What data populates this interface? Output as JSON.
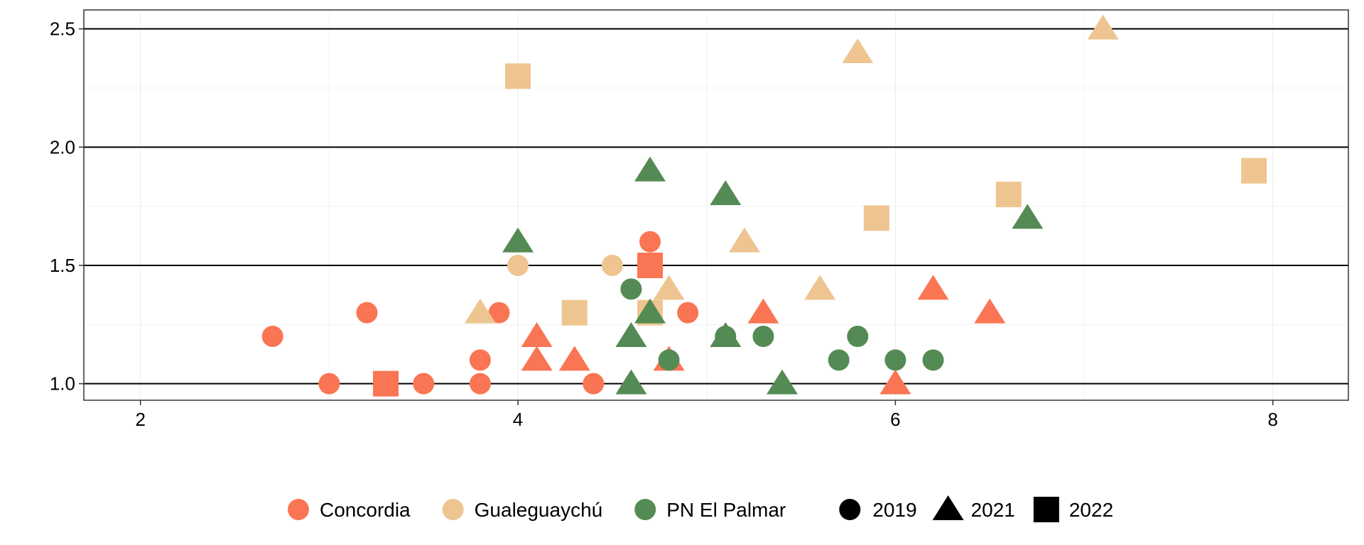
{
  "chart_data": {
    "type": "scatter",
    "title": "",
    "xlabel": "",
    "ylabel": "",
    "xlim": [
      1.7,
      8.4
    ],
    "ylim": [
      0.93,
      2.58
    ],
    "x_ticks": [
      2,
      4,
      6,
      8
    ],
    "x_tick_labels": [
      "2",
      "4",
      "6",
      "8"
    ],
    "y_ticks": [
      1.0,
      1.5,
      2.0,
      2.5
    ],
    "y_tick_labels": [
      "1.0",
      "1.5",
      "2.0",
      "2.5"
    ],
    "grid": "major horizontal lines dark; minor lines light",
    "legend_position": "bottom",
    "color_legend": [
      {
        "name": "Concordia",
        "color": "#FA7553"
      },
      {
        "name": "Gualeguaychú",
        "color": "#EEC591"
      },
      {
        "name": "PN El Palmar",
        "color": "#548B54"
      }
    ],
    "shape_legend": [
      {
        "name": "2019",
        "shape": "circle"
      },
      {
        "name": "2021",
        "shape": "triangle"
      },
      {
        "name": "2022",
        "shape": "square"
      }
    ],
    "series": [
      {
        "site": "Concordia",
        "year": "2019",
        "points": [
          [
            2.7,
            1.2
          ],
          [
            3.0,
            1.0
          ],
          [
            3.2,
            1.3
          ],
          [
            3.5,
            1.0
          ],
          [
            3.8,
            1.0
          ],
          [
            3.8,
            1.1
          ],
          [
            3.9,
            1.3
          ],
          [
            4.4,
            1.0
          ],
          [
            4.7,
            1.6
          ],
          [
            4.9,
            1.3
          ]
        ]
      },
      {
        "site": "Concordia",
        "year": "2021",
        "points": [
          [
            4.1,
            1.2
          ],
          [
            4.1,
            1.1
          ],
          [
            4.3,
            1.1
          ],
          [
            4.8,
            1.1
          ],
          [
            5.3,
            1.3
          ],
          [
            6.0,
            1.0
          ],
          [
            6.2,
            1.4
          ],
          [
            6.5,
            1.3
          ]
        ]
      },
      {
        "site": "Concordia",
        "year": "2022",
        "points": [
          [
            3.3,
            1.0
          ],
          [
            4.7,
            1.5
          ]
        ]
      },
      {
        "site": "Gualeguaychú",
        "year": "2019",
        "points": [
          [
            4.0,
            1.5
          ],
          [
            4.5,
            1.5
          ]
        ]
      },
      {
        "site": "Gualeguaychú",
        "year": "2021",
        "points": [
          [
            3.8,
            1.3
          ],
          [
            4.8,
            1.4
          ],
          [
            5.2,
            1.6
          ],
          [
            5.6,
            1.4
          ],
          [
            5.8,
            2.4
          ],
          [
            7.1,
            2.5
          ]
        ]
      },
      {
        "site": "Gualeguaychú",
        "year": "2022",
        "points": [
          [
            4.0,
            2.3
          ],
          [
            4.3,
            1.3
          ],
          [
            4.7,
            1.3
          ],
          [
            5.9,
            1.7
          ],
          [
            6.6,
            1.8
          ],
          [
            7.9,
            1.9
          ]
        ]
      },
      {
        "site": "PN El Palmar",
        "year": "2019",
        "points": [
          [
            4.6,
            1.4
          ],
          [
            4.8,
            1.1
          ],
          [
            5.1,
            1.2
          ],
          [
            5.3,
            1.2
          ],
          [
            5.7,
            1.1
          ],
          [
            5.8,
            1.2
          ],
          [
            6.0,
            1.1
          ],
          [
            6.2,
            1.1
          ]
        ]
      },
      {
        "site": "PN El Palmar",
        "year": "2021",
        "points": [
          [
            4.0,
            1.6
          ],
          [
            4.6,
            1.0
          ],
          [
            4.6,
            1.2
          ],
          [
            4.7,
            1.3
          ],
          [
            4.7,
            1.9
          ],
          [
            5.1,
            1.2
          ],
          [
            5.1,
            1.8
          ],
          [
            5.4,
            1.0
          ],
          [
            6.7,
            1.7
          ]
        ]
      }
    ]
  }
}
